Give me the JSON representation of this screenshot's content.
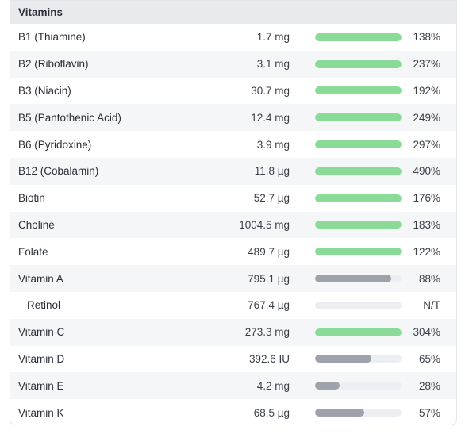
{
  "section": {
    "title": "Vitamins"
  },
  "colors": {
    "over_target": "#8adb98",
    "under_target": "#9ea2ab",
    "track": "#eceef3"
  },
  "rows": [
    {
      "name": "B1 (Thiamine)",
      "amount": "1.7 mg",
      "percent": "138%",
      "fill_pct": 100,
      "status": "green"
    },
    {
      "name": "B2 (Riboflavin)",
      "amount": "3.1 mg",
      "percent": "237%",
      "fill_pct": 100,
      "status": "green"
    },
    {
      "name": "B3 (Niacin)",
      "amount": "30.7 mg",
      "percent": "192%",
      "fill_pct": 100,
      "status": "green"
    },
    {
      "name": "B5 (Pantothenic Acid)",
      "amount": "12.4 mg",
      "percent": "249%",
      "fill_pct": 100,
      "status": "green"
    },
    {
      "name": "B6 (Pyridoxine)",
      "amount": "3.9 mg",
      "percent": "297%",
      "fill_pct": 100,
      "status": "green"
    },
    {
      "name": "B12 (Cobalamin)",
      "amount": "11.8 µg",
      "percent": "490%",
      "fill_pct": 100,
      "status": "green"
    },
    {
      "name": "Biotin",
      "amount": "52.7 µg",
      "percent": "176%",
      "fill_pct": 100,
      "status": "green"
    },
    {
      "name": "Choline",
      "amount": "1004.5 mg",
      "percent": "183%",
      "fill_pct": 100,
      "status": "green"
    },
    {
      "name": "Folate",
      "amount": "489.7 µg",
      "percent": "122%",
      "fill_pct": 100,
      "status": "green"
    },
    {
      "name": "Vitamin A",
      "amount": "795.1 µg",
      "percent": "88%",
      "fill_pct": 88,
      "status": "gray"
    },
    {
      "name": "Retinol",
      "amount": "767.4 µg",
      "percent": "N/T",
      "fill_pct": 0,
      "status": "gray",
      "sub": true
    },
    {
      "name": "Vitamin C",
      "amount": "273.3 mg",
      "percent": "304%",
      "fill_pct": 100,
      "status": "green"
    },
    {
      "name": "Vitamin D",
      "amount": "392.6 IU",
      "percent": "65%",
      "fill_pct": 65,
      "status": "gray"
    },
    {
      "name": "Vitamin E",
      "amount": "4.2 mg",
      "percent": "28%",
      "fill_pct": 28,
      "status": "gray"
    },
    {
      "name": "Vitamin K",
      "amount": "68.5 µg",
      "percent": "57%",
      "fill_pct": 57,
      "status": "gray"
    }
  ]
}
